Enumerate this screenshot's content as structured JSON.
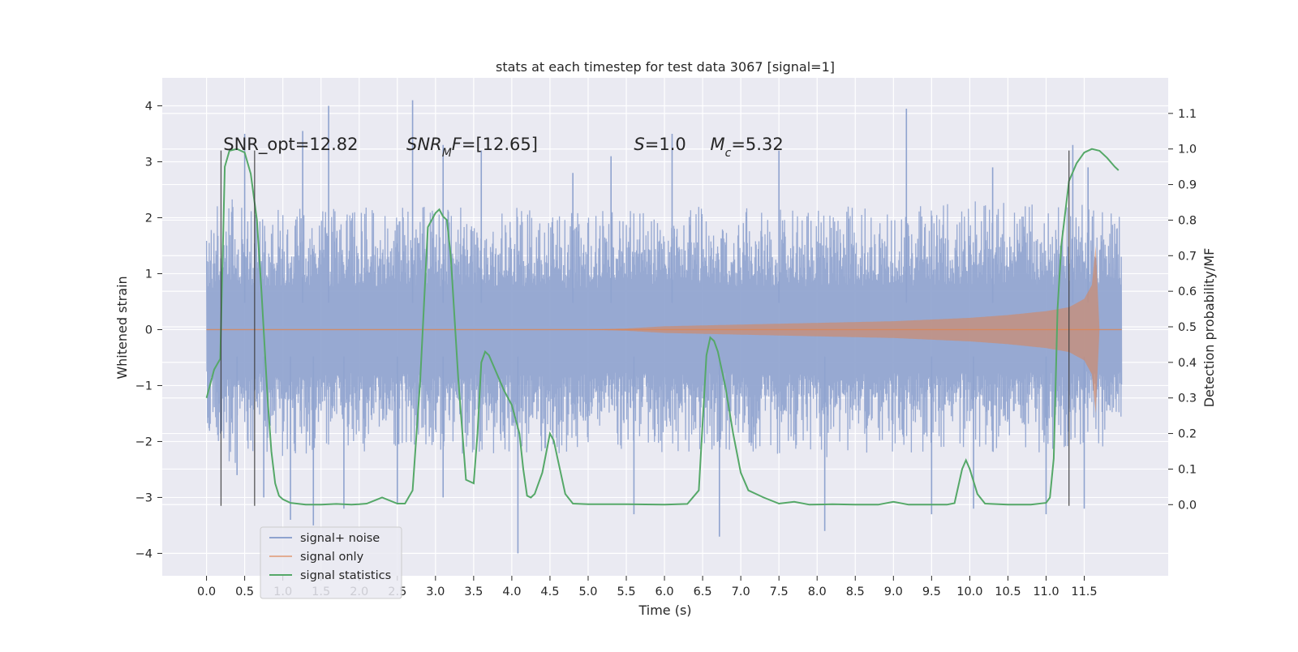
{
  "chart_data": {
    "type": "line",
    "title": "stats at each timestep for test data 3067 [signal=1]",
    "xlabel": "Time (s)",
    "ylabel_left": "Whitened strain",
    "ylabel_right": "Detection probability/MF",
    "xlim": [
      -0.58,
      12.6
    ],
    "ylim_left": [
      -4.4,
      4.5
    ],
    "ylim_right": [
      -0.2,
      1.2
    ],
    "x_ticks": [
      0.0,
      0.5,
      1.0,
      1.5,
      2.0,
      2.5,
      3.0,
      3.5,
      4.0,
      4.5,
      5.0,
      5.5,
      6.0,
      6.5,
      7.0,
      7.5,
      8.0,
      8.5,
      9.0,
      9.5,
      10.0,
      10.5,
      11.0,
      11.5
    ],
    "x_tick_labels": [
      "0.0",
      "0.5",
      "1.0",
      "1.5",
      "2.0",
      "2.5",
      "3.0",
      "3.5",
      "4.0",
      "4.5",
      "5.0",
      "5.5",
      "6.0",
      "6.5",
      "7.0",
      "7.5",
      "8.0",
      "8.5",
      "9.0",
      "9.5",
      "10.0",
      "10.5",
      "11.0",
      "11.5"
    ],
    "y_ticks_left": [
      -4,
      -3,
      -2,
      -1,
      0,
      1,
      2,
      3,
      4
    ],
    "y_tick_labels_left": [
      "−4",
      "−3",
      "−2",
      "−1",
      "0",
      "1",
      "2",
      "3",
      "4"
    ],
    "y_ticks_right": [
      0.0,
      0.1,
      0.2,
      0.3,
      0.4,
      0.5,
      0.6,
      0.7,
      0.8,
      0.9,
      1.0,
      1.1
    ],
    "y_tick_labels_right": [
      "0.0",
      "0.1",
      "0.2",
      "0.3",
      "0.4",
      "0.5",
      "0.6",
      "0.7",
      "0.8",
      "0.9",
      "1.0",
      "1.1"
    ],
    "grid": true,
    "legend_position": "lower-left",
    "annotations": [
      {
        "x": 0.22,
        "y": 3.3,
        "parts": [
          {
            "t": "SNR_opt=12.82",
            "style": "normal"
          }
        ]
      },
      {
        "x": 2.62,
        "y": 3.3,
        "parts": [
          {
            "t": "SNR",
            "style": "italic"
          },
          {
            "t": "M",
            "style": "italic-sub"
          },
          {
            "t": "F",
            "style": "italic"
          },
          {
            "t": "=[12.65]",
            "style": "normal"
          }
        ]
      },
      {
        "x": 5.6,
        "y": 3.3,
        "parts": [
          {
            "t": "S",
            "style": "italic"
          },
          {
            "t": "=1.0",
            "style": "normal"
          }
        ]
      },
      {
        "x": 6.6,
        "y": 3.3,
        "parts": [
          {
            "t": "M",
            "style": "italic"
          },
          {
            "t": "c",
            "style": "italic-sub"
          },
          {
            "t": "=5.32",
            "style": "normal"
          }
        ]
      }
    ],
    "vertical_markers": [
      {
        "x": 0.19,
        "y0": -3.15,
        "y1": 3.2
      },
      {
        "x": 0.63,
        "y0": -3.15,
        "y1": 3.2
      },
      {
        "x": 11.3,
        "y0": -3.15,
        "y1": 3.2
      }
    ],
    "series": [
      {
        "name": "signal+ noise",
        "color": "#8fa3cf",
        "axis": "left",
        "kind": "noise",
        "x_range": [
          0.0,
          11.99
        ],
        "typical_amplitude": 0.8,
        "envelope_upper": [
          [
            0.0,
            1.9
          ],
          [
            0.1,
            2.2
          ],
          [
            0.3,
            2.6
          ],
          [
            0.5,
            2.1
          ],
          [
            1.0,
            2.2
          ],
          [
            2.0,
            2.2
          ],
          [
            3.0,
            2.2
          ],
          [
            4.0,
            2.2
          ],
          [
            5.0,
            2.1
          ],
          [
            6.0,
            2.3
          ],
          [
            7.0,
            2.2
          ],
          [
            8.0,
            2.2
          ],
          [
            9.0,
            2.2
          ],
          [
            10.0,
            2.3
          ],
          [
            11.0,
            2.3
          ],
          [
            11.99,
            2.2
          ]
        ],
        "envelope_lower": [
          [
            0.0,
            -1.7
          ],
          [
            0.1,
            -2.1
          ],
          [
            0.3,
            -2.5
          ],
          [
            0.5,
            -2.2
          ],
          [
            1.0,
            -2.3
          ],
          [
            2.0,
            -2.2
          ],
          [
            3.0,
            -2.2
          ],
          [
            4.0,
            -2.3
          ],
          [
            5.0,
            -2.2
          ],
          [
            6.0,
            -2.2
          ],
          [
            7.0,
            -2.2
          ],
          [
            8.0,
            -2.3
          ],
          [
            9.0,
            -2.2
          ],
          [
            10.0,
            -2.2
          ],
          [
            11.0,
            -2.2
          ],
          [
            11.99,
            -2.1
          ]
        ],
        "peaks": [
          [
            0.5,
            3.5
          ],
          [
            1.26,
            3.55
          ],
          [
            1.6,
            4.0
          ],
          [
            2.7,
            4.1
          ],
          [
            3.1,
            3.3
          ],
          [
            3.6,
            3.2
          ],
          [
            4.8,
            2.8
          ],
          [
            5.3,
            3.1
          ],
          [
            6.1,
            3.5
          ],
          [
            7.5,
            3.2
          ],
          [
            9.17,
            3.95
          ],
          [
            10.3,
            2.9
          ],
          [
            11.35,
            3.3
          ],
          [
            11.55,
            2.9
          ],
          [
            0.4,
            -2.6
          ],
          [
            0.75,
            -3.0
          ],
          [
            1.1,
            -3.4
          ],
          [
            1.4,
            -3.5
          ],
          [
            1.8,
            -3.2
          ],
          [
            2.5,
            -3.1
          ],
          [
            3.1,
            -3.0
          ],
          [
            4.08,
            -4.0
          ],
          [
            5.6,
            -3.3
          ],
          [
            6.72,
            -3.7
          ],
          [
            8.1,
            -3.6
          ],
          [
            9.5,
            -3.3
          ],
          [
            10.05,
            -3.2
          ],
          [
            11.0,
            -3.3
          ],
          [
            11.5,
            -3.2
          ]
        ]
      },
      {
        "name": "signal only",
        "color": "#dd8452",
        "axis": "left",
        "kind": "chirp",
        "amplitude_envelope": [
          [
            0.0,
            0.0
          ],
          [
            5.0,
            0.0
          ],
          [
            5.5,
            0.02
          ],
          [
            6.0,
            0.06
          ],
          [
            7.0,
            0.09
          ],
          [
            8.0,
            0.12
          ],
          [
            9.0,
            0.15
          ],
          [
            10.0,
            0.21
          ],
          [
            10.5,
            0.26
          ],
          [
            11.0,
            0.33
          ],
          [
            11.3,
            0.4
          ],
          [
            11.5,
            0.55
          ],
          [
            11.6,
            0.8
          ],
          [
            11.65,
            1.5
          ],
          [
            11.68,
            0.6
          ],
          [
            11.7,
            0.0
          ],
          [
            11.99,
            0.0
          ]
        ]
      },
      {
        "name": "signal statistics",
        "color": "#55a868",
        "axis": "right",
        "kind": "line",
        "x": [
          0.0,
          0.1,
          0.18,
          0.24,
          0.3,
          0.4,
          0.5,
          0.58,
          0.66,
          0.72,
          0.8,
          0.85,
          0.9,
          0.95,
          1.0,
          1.1,
          1.3,
          1.5,
          1.7,
          1.9,
          2.0,
          2.1,
          2.3,
          2.5,
          2.6,
          2.7,
          2.8,
          2.9,
          3.0,
          3.05,
          3.1,
          3.15,
          3.2,
          3.3,
          3.4,
          3.5,
          3.55,
          3.6,
          3.65,
          3.7,
          3.8,
          3.9,
          4.0,
          4.1,
          4.15,
          4.2,
          4.25,
          4.3,
          4.4,
          4.5,
          4.55,
          4.6,
          4.7,
          4.8,
          5.0,
          5.5,
          6.0,
          6.3,
          6.45,
          6.5,
          6.55,
          6.6,
          6.65,
          6.7,
          6.75,
          6.8,
          6.9,
          7.0,
          7.1,
          7.2,
          7.3,
          7.5,
          7.7,
          7.9,
          8.2,
          8.5,
          8.8,
          9.0,
          9.2,
          9.5,
          9.7,
          9.8,
          9.9,
          9.95,
          10.0,
          10.1,
          10.2,
          10.5,
          10.8,
          11.0,
          11.05,
          11.1,
          11.15,
          11.2,
          11.3,
          11.4,
          11.5,
          11.6,
          11.7,
          11.8,
          11.9,
          11.95
        ],
        "y": [
          0.3,
          0.38,
          0.41,
          0.95,
          0.995,
          1.0,
          0.99,
          0.93,
          0.8,
          0.6,
          0.3,
          0.15,
          0.06,
          0.025,
          0.015,
          0.005,
          0.0,
          0.0,
          0.002,
          0.0,
          0.001,
          0.003,
          0.02,
          0.003,
          0.003,
          0.04,
          0.35,
          0.78,
          0.82,
          0.83,
          0.81,
          0.8,
          0.7,
          0.35,
          0.07,
          0.06,
          0.2,
          0.4,
          0.43,
          0.42,
          0.37,
          0.32,
          0.28,
          0.2,
          0.1,
          0.025,
          0.02,
          0.03,
          0.09,
          0.2,
          0.18,
          0.13,
          0.03,
          0.003,
          0.001,
          0.001,
          0.0,
          0.002,
          0.04,
          0.23,
          0.42,
          0.47,
          0.46,
          0.43,
          0.38,
          0.33,
          0.2,
          0.09,
          0.04,
          0.03,
          0.02,
          0.003,
          0.008,
          0.0,
          0.001,
          0.0,
          0.0,
          0.008,
          0.0,
          0.0,
          0.0,
          0.004,
          0.1,
          0.125,
          0.1,
          0.03,
          0.003,
          0.0,
          0.0,
          0.005,
          0.02,
          0.13,
          0.55,
          0.73,
          0.91,
          0.96,
          0.99,
          1.0,
          0.995,
          0.975,
          0.95,
          0.94
        ]
      }
    ]
  }
}
